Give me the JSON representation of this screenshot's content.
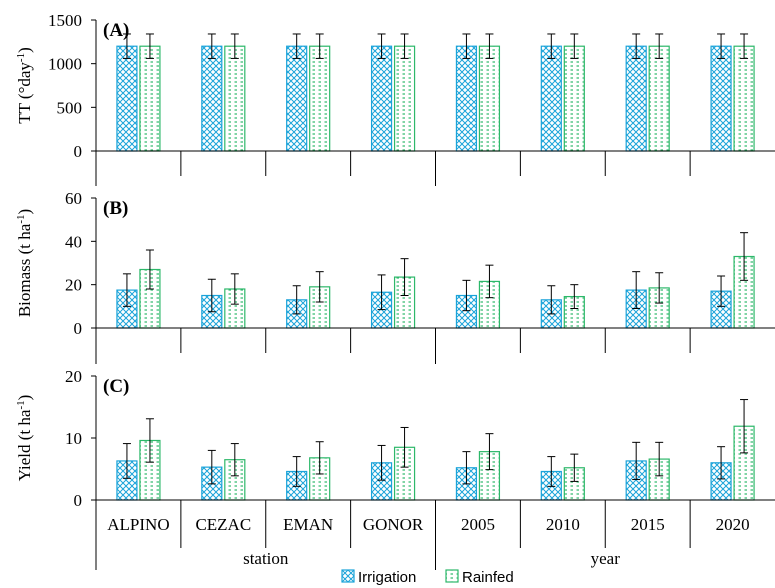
{
  "chart_data": {
    "type": "bar",
    "categories": [
      "ALPINO",
      "CEZAC",
      "EMAN",
      "GONOR",
      "2005",
      "2010",
      "2015",
      "2020"
    ],
    "groups": [
      {
        "label": "station",
        "start": 0,
        "end": 3
      },
      {
        "label": "year",
        "start": 4,
        "end": 7
      }
    ],
    "legend": {
      "position": "bottom",
      "entries": [
        "Irrigation",
        "Rainfed"
      ]
    },
    "colors": {
      "Irrigation": "#1aa3d9",
      "Rainfed": "#2db86a"
    },
    "panels": [
      {
        "label": "(A)",
        "ylabel_main": "TT (°day",
        "ylabel_sup": "-1",
        "ylabel_end": ")",
        "ylim": [
          0,
          1500
        ],
        "yticks": [
          0,
          500,
          1000,
          1500
        ],
        "series": [
          {
            "name": "Irrigation",
            "values": [
              1200,
              1200,
              1200,
              1200,
              1200,
              1200,
              1200,
              1200
            ],
            "errors": [
              140,
              140,
              140,
              140,
              140,
              140,
              140,
              140
            ]
          },
          {
            "name": "Rainfed",
            "values": [
              1200,
              1200,
              1200,
              1200,
              1200,
              1200,
              1200,
              1200
            ],
            "errors": [
              140,
              140,
              140,
              140,
              140,
              140,
              140,
              140
            ]
          }
        ]
      },
      {
        "label": "(B)",
        "ylabel_main": "Biomass (t ha",
        "ylabel_sup": "-1",
        "ylabel_end": ")",
        "ylim": [
          0,
          60
        ],
        "yticks": [
          0,
          20,
          40,
          60
        ],
        "series": [
          {
            "name": "Irrigation",
            "values": [
              17.5,
              15,
              13,
              16.5,
              15,
              13,
              17.5,
              17
            ],
            "errors": [
              7.5,
              7.5,
              6.5,
              8,
              7,
              6.5,
              8.5,
              7
            ]
          },
          {
            "name": "Rainfed",
            "values": [
              27,
              18,
              19,
              23.5,
              21.5,
              14.5,
              18.5,
              33
            ],
            "errors": [
              9,
              7,
              7,
              8.5,
              7.5,
              5.5,
              7,
              11
            ]
          }
        ]
      },
      {
        "label": "(C)",
        "ylabel_main": "Yield (t ha",
        "ylabel_sup": "-1",
        "ylabel_end": ")",
        "ylim": [
          0,
          20
        ],
        "yticks": [
          0,
          10,
          20
        ],
        "series": [
          {
            "name": "Irrigation",
            "values": [
              6.3,
              5.3,
              4.6,
              6,
              5.2,
              4.6,
              6.3,
              6
            ],
            "errors": [
              2.8,
              2.7,
              2.4,
              2.8,
              2.6,
              2.4,
              3,
              2.6
            ]
          },
          {
            "name": "Rainfed",
            "values": [
              9.6,
              6.5,
              6.8,
              8.5,
              7.8,
              5.2,
              6.6,
              11.9
            ],
            "errors": [
              3.5,
              2.6,
              2.6,
              3.2,
              2.9,
              2.2,
              2.7,
              4.3
            ]
          }
        ]
      }
    ]
  }
}
